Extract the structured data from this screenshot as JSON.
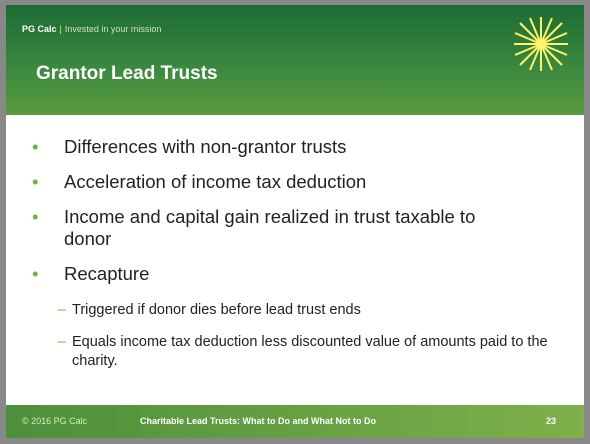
{
  "header": {
    "brand": "PG Calc",
    "tagline": "Invested in your mission",
    "title": "Grantor Lead Trusts"
  },
  "bullets": [
    {
      "text": "Differences with non-grantor trusts"
    },
    {
      "text": "Acceleration of income tax deduction"
    },
    {
      "text": "Income and capital gain realized in trust taxable to donor"
    },
    {
      "text": "Recapture",
      "sub": [
        "Triggered if donor dies before lead trust ends",
        "Equals income tax deduction less discounted value of amounts paid to the charity."
      ]
    }
  ],
  "footer": {
    "copyright": "© 2016 PG Calc",
    "presentation": "Charitable Lead Trusts: What to Do and What Not to Do",
    "page": "23"
  }
}
